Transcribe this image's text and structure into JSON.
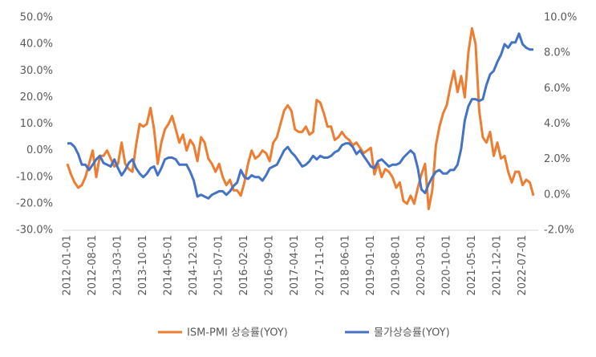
{
  "chart_data": {
    "type": "line",
    "categories": [
      "2012-01-01",
      null,
      null,
      null,
      null,
      null,
      null,
      "2012-08-01",
      null,
      null,
      null,
      null,
      null,
      null,
      "2013-03-01",
      null,
      null,
      null,
      null,
      null,
      null,
      "2013-10-01",
      null,
      null,
      null,
      null,
      null,
      null,
      "2014-05-01",
      null,
      null,
      null,
      null,
      null,
      null,
      "2014-12-01",
      null,
      null,
      null,
      null,
      null,
      null,
      "2015-07-01",
      null,
      null,
      null,
      null,
      null,
      null,
      "2016-02-01",
      null,
      null,
      null,
      null,
      null,
      null,
      "2016-09-01",
      null,
      null,
      null,
      null,
      null,
      null,
      "2017-04-01",
      null,
      null,
      null,
      null,
      null,
      null,
      "2017-11-01",
      null,
      null,
      null,
      null,
      null,
      null,
      "2018-06-01",
      null,
      null,
      null,
      null,
      null,
      null,
      "2019-01-01",
      null,
      null,
      null,
      null,
      null,
      null,
      "2019-08-01",
      null,
      null,
      null,
      null,
      null,
      null,
      "2020-03-01",
      null,
      null,
      null,
      null,
      null,
      null,
      "2020-10-01",
      null,
      null,
      null,
      null,
      null,
      null,
      "2021-05-01",
      null,
      null,
      null,
      null,
      null,
      null,
      "2021-12-01",
      null,
      null,
      null,
      null,
      null,
      null,
      "2022-07-01",
      null,
      null,
      null
    ],
    "series": [
      {
        "name": "ISM-PMI 상승률(YOY)",
        "color": "#ed7d31",
        "values": [
          -5,
          -9,
          -12,
          -14,
          -13,
          -10,
          -5,
          0,
          -10,
          -2,
          -2,
          0,
          -3,
          -6,
          -5,
          3,
          -5,
          -7,
          -8,
          2,
          10,
          9,
          10,
          16,
          8,
          -5,
          3,
          8,
          10,
          13,
          8,
          3,
          6,
          0,
          4,
          2,
          -4,
          5,
          3,
          -3,
          -5,
          -8,
          -5,
          -10,
          -13,
          -11,
          -15,
          -15,
          -17,
          -12,
          -5,
          0,
          -3,
          -2,
          0,
          -1,
          -4,
          3,
          5,
          10,
          15,
          17,
          15,
          8,
          7,
          7,
          9,
          6,
          7,
          19,
          18,
          14,
          9,
          9,
          4,
          5,
          7,
          5,
          4,
          2,
          3,
          1,
          -1,
          0,
          1,
          -9,
          -5,
          -10,
          -7,
          -8,
          -10,
          -14,
          -12,
          -19,
          -20,
          -17,
          -20,
          -14,
          -9,
          -5,
          -22,
          -15,
          2,
          9,
          14,
          17,
          24,
          30,
          22,
          28,
          20,
          37,
          46,
          40,
          15,
          5,
          3,
          7,
          -2,
          3,
          -3,
          -2,
          -8,
          -12,
          -8,
          -8,
          -13,
          -11,
          -12,
          -17
        ]
      },
      {
        "name": "물가상승률(YOY)",
        "color": "#4472c4",
        "axis": "y2",
        "values": [
          2.9,
          2.9,
          2.7,
          2.3,
          1.7,
          1.7,
          1.4,
          1.7,
          2.0,
          2.2,
          1.8,
          1.7,
          1.6,
          2.0,
          1.5,
          1.1,
          1.4,
          1.8,
          2.0,
          1.5,
          1.2,
          1.0,
          1.2,
          1.5,
          1.6,
          1.1,
          1.5,
          2.0,
          2.1,
          2.1,
          2.0,
          1.7,
          1.7,
          1.7,
          1.3,
          0.8,
          -0.1,
          0.0,
          -0.1,
          -0.2,
          0.0,
          0.1,
          0.2,
          0.2,
          0.0,
          0.2,
          0.5,
          0.7,
          1.4,
          1.0,
          0.9,
          1.1,
          1.0,
          1.0,
          0.8,
          1.1,
          1.5,
          1.6,
          1.7,
          2.1,
          2.5,
          2.7,
          2.4,
          2.2,
          1.9,
          1.6,
          1.7,
          1.9,
          2.2,
          2.0,
          2.2,
          2.1,
          2.1,
          2.2,
          2.4,
          2.5,
          2.8,
          2.9,
          2.9,
          2.7,
          2.3,
          2.5,
          2.2,
          1.9,
          1.6,
          1.5,
          1.9,
          2.0,
          1.8,
          1.6,
          1.7,
          1.7,
          1.8,
          2.1,
          2.3,
          2.5,
          2.3,
          1.5,
          0.3,
          0.1,
          0.6,
          1.0,
          1.3,
          1.4,
          1.2,
          1.2,
          1.4,
          1.4,
          1.7,
          2.6,
          4.2,
          5.0,
          5.4,
          5.4,
          5.3,
          5.4,
          6.2,
          6.8,
          7.0,
          7.5,
          7.9,
          8.5,
          8.3,
          8.6,
          8.6,
          9.1,
          8.5,
          8.3,
          8.2,
          8.2
        ]
      }
    ],
    "ylim": [
      -30,
      50
    ],
    "yticks": [
      {
        "value": -30,
        "label": "-30.0%"
      },
      {
        "value": -20,
        "label": "-20.0%"
      },
      {
        "value": -10,
        "label": "-10.0%"
      },
      {
        "value": 0,
        "label": "0.0%"
      },
      {
        "value": 10,
        "label": "10.0%"
      },
      {
        "value": 20,
        "label": "20.0%"
      },
      {
        "value": 30,
        "label": "30.0%"
      },
      {
        "value": 40,
        "label": "40.0%"
      },
      {
        "value": 50,
        "label": "50.0%"
      }
    ],
    "y2lim": [
      -2,
      10
    ],
    "y2ticks": [
      {
        "value": -2,
        "label": "-2.0%"
      },
      {
        "value": 0,
        "label": "0.0%"
      },
      {
        "value": 2,
        "label": "2.0%"
      },
      {
        "value": 4,
        "label": "4.0%"
      },
      {
        "value": 6,
        "label": "6.0%"
      },
      {
        "value": 8,
        "label": "8.0%"
      },
      {
        "value": 10,
        "label": "10.0%"
      }
    ],
    "legend": "bottom"
  }
}
